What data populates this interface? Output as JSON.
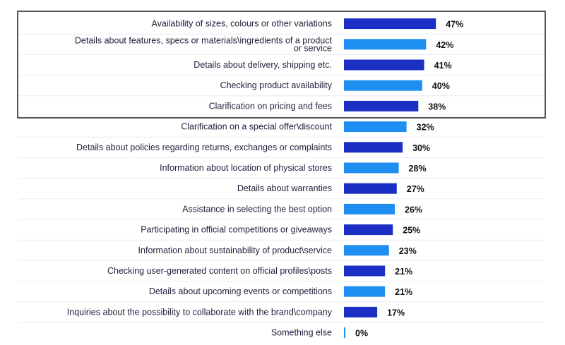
{
  "chart_data": {
    "type": "bar",
    "orientation": "horizontal",
    "title": "",
    "xlabel": "",
    "ylabel": "",
    "xlim": [
      0,
      100
    ],
    "unit": "%",
    "highlighted_top_n": 5,
    "categories": [
      "Availability of sizes, colours or other variations",
      "Details about features, specs or materials\\ingredients of a product or service",
      "Details about delivery, shipping etc.",
      "Checking product availability",
      "Clarification on pricing and fees",
      "Clarification on a special offer\\discount",
      "Details about policies regarding returns, exchanges or complaints",
      "Information about location of physical stores",
      "Details about warranties",
      "Assistance in selecting the best option",
      "Participating in official competitions or giveaways",
      "Information about sustainability of product\\service",
      "Checking user-generated content on official profiles\\posts",
      "Details about upcoming events or competitions",
      "Inquiries about the possibility to collaborate with the brand\\company",
      "Something else"
    ],
    "label_lines": [
      [
        "Availability of sizes, colours or other variations"
      ],
      [
        "Details about features, specs or materials\\ingredients of a product",
        "or service"
      ],
      [
        "Details about delivery, shipping etc."
      ],
      [
        "Checking product availability"
      ],
      [
        "Clarification on pricing and fees"
      ],
      [
        "Clarification on a special offer\\discount"
      ],
      [
        "Details about policies regarding returns, exchanges or complaints"
      ],
      [
        "Information about location of physical stores"
      ],
      [
        "Details about warranties"
      ],
      [
        "Assistance in selecting the best option"
      ],
      [
        "Participating in official competitions or giveaways"
      ],
      [
        "Information about sustainability of product\\service"
      ],
      [
        "Checking user-generated content on official profiles\\posts"
      ],
      [
        "Details about upcoming events or competitions"
      ],
      [
        "Inquiries about the possibility to collaborate with the brand\\company"
      ],
      [
        "Something else"
      ]
    ],
    "values": [
      47,
      42,
      41,
      40,
      38,
      32,
      30,
      28,
      27,
      26,
      25,
      23,
      21,
      21,
      17,
      0
    ],
    "value_labels": [
      "47%",
      "42%",
      "41%",
      "40%",
      "38%",
      "32%",
      "30%",
      "28%",
      "27%",
      "26%",
      "25%",
      "23%",
      "21%",
      "21%",
      "17%",
      "0%"
    ],
    "colors": {
      "dark": "#1b2fc4",
      "light": "#1f8ef1",
      "text": "#1f1f3a",
      "grid": "#ececf2",
      "box": "#111111"
    }
  }
}
